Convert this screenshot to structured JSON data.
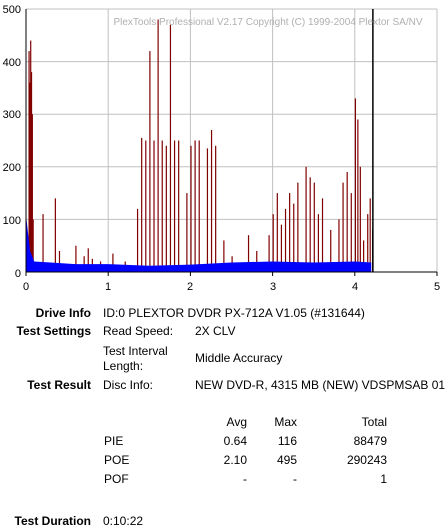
{
  "chart_data": {
    "type": "bar",
    "watermark": "PlexTools Professional V2.17 Copyright (C) 1999-2004 Plextor SA/NV",
    "xlim": [
      0,
      5
    ],
    "ylim": [
      0,
      500
    ],
    "x_ticks": [
      "0",
      "1",
      "2",
      "3",
      "4",
      "5"
    ],
    "y_ticks": [
      "0",
      "100",
      "200",
      "300",
      "400",
      "500"
    ],
    "grid": true,
    "end_marker_x": 4.22,
    "colors": {
      "poe": "#800000",
      "pie": "#0000ff",
      "grid": "#c0c0c0",
      "marker": "#000000"
    },
    "series": [
      {
        "name": "POE",
        "points": [
          [
            0.03,
            420
          ],
          [
            0.04,
            360
          ],
          [
            0.05,
            440
          ],
          [
            0.06,
            380
          ],
          [
            0.07,
            300
          ],
          [
            0.08,
            100
          ],
          [
            0.2,
            110
          ],
          [
            0.35,
            140
          ],
          [
            0.4,
            40
          ],
          [
            0.6,
            50
          ],
          [
            0.7,
            30
          ],
          [
            0.75,
            45
          ],
          [
            0.8,
            25
          ],
          [
            0.9,
            20
          ],
          [
            1.05,
            35
          ],
          [
            1.2,
            20
          ],
          [
            1.35,
            120
          ],
          [
            1.4,
            255
          ],
          [
            1.45,
            250
          ],
          [
            1.5,
            420
          ],
          [
            1.55,
            250
          ],
          [
            1.6,
            480
          ],
          [
            1.65,
            250
          ],
          [
            1.7,
            240
          ],
          [
            1.75,
            470
          ],
          [
            1.8,
            250
          ],
          [
            1.85,
            250
          ],
          [
            1.95,
            150
          ],
          [
            2.0,
            240
          ],
          [
            2.05,
            250
          ],
          [
            2.1,
            250
          ],
          [
            2.2,
            235
          ],
          [
            2.25,
            270
          ],
          [
            2.3,
            240
          ],
          [
            2.4,
            60
          ],
          [
            2.5,
            30
          ],
          [
            2.7,
            70
          ],
          [
            2.8,
            40
          ],
          [
            2.95,
            70
          ],
          [
            3.0,
            110
          ],
          [
            3.05,
            150
          ],
          [
            3.1,
            90
          ],
          [
            3.15,
            120
          ],
          [
            3.2,
            150
          ],
          [
            3.25,
            130
          ],
          [
            3.3,
            170
          ],
          [
            3.4,
            200
          ],
          [
            3.45,
            180
          ],
          [
            3.5,
            170
          ],
          [
            3.55,
            110
          ],
          [
            3.6,
            140
          ],
          [
            3.7,
            80
          ],
          [
            3.8,
            100
          ],
          [
            3.85,
            170
          ],
          [
            3.9,
            190
          ],
          [
            3.95,
            150
          ],
          [
            4.0,
            330
          ],
          [
            4.03,
            290
          ],
          [
            4.06,
            200
          ],
          [
            4.1,
            60
          ],
          [
            4.15,
            110
          ],
          [
            4.18,
            140
          ],
          [
            4.21,
            80
          ]
        ]
      },
      {
        "name": "PIE",
        "points": [
          [
            0.0,
            110
          ],
          [
            0.02,
            80
          ],
          [
            0.05,
            40
          ],
          [
            0.1,
            20
          ],
          [
            0.3,
            18
          ],
          [
            0.6,
            15
          ],
          [
            1.0,
            15
          ],
          [
            1.5,
            12
          ],
          [
            2.0,
            14
          ],
          [
            2.5,
            18
          ],
          [
            3.0,
            20
          ],
          [
            3.5,
            18
          ],
          [
            4.0,
            20
          ],
          [
            4.2,
            18
          ]
        ]
      }
    ]
  },
  "drive_info": {
    "label": "Drive Info",
    "value": "ID:0 PLEXTOR DVDR PX-712A V1.05 (#131644)"
  },
  "test_settings": {
    "label": "Test Settings",
    "read_speed_label": "Read Speed:",
    "read_speed_value": "2X CLV",
    "interval_label_1": "Test Interval",
    "interval_label_2": "Length:",
    "interval_value": "Middle Accuracy"
  },
  "test_result": {
    "label": "Test Result",
    "disc_info_label": "Disc Info:",
    "disc_info_value": "NEW DVD-R, 4315 MB (NEW) VDSPMSAB 01"
  },
  "stats": {
    "headers": {
      "avg": "Avg",
      "max": "Max",
      "total": "Total"
    },
    "rows": [
      {
        "name": "PIE",
        "avg": "0.64",
        "max": "116",
        "total": "88479"
      },
      {
        "name": "POE",
        "avg": "2.10",
        "max": "495",
        "total": "290243"
      },
      {
        "name": "POF",
        "avg": "-",
        "max": "-",
        "total": "1"
      }
    ]
  },
  "test_duration": {
    "label": "Test Duration",
    "value": "0:10:22"
  }
}
